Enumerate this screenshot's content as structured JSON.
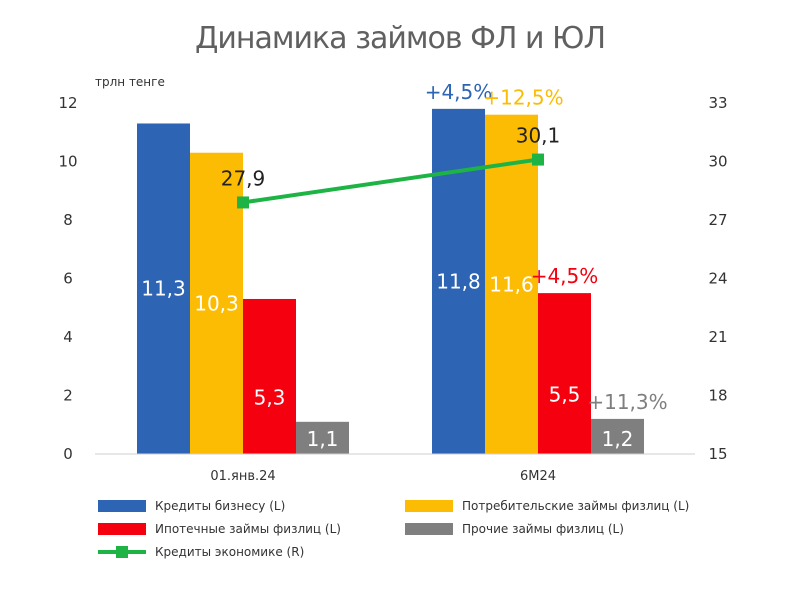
{
  "chart_data": {
    "type": "bar",
    "title": "Динамика займов ФЛ и ЮЛ",
    "ylabel": "трлн тенге",
    "categories": [
      "01.янв.24",
      "6М24"
    ],
    "ylim": [
      0,
      12
    ],
    "y_ticks": [
      0,
      2,
      4,
      6,
      8,
      10,
      12
    ],
    "y2lim": [
      15,
      33
    ],
    "y2_ticks": [
      15,
      18,
      21,
      24,
      27,
      30,
      33
    ],
    "series": [
      {
        "name": "Кредиты бизнесу (L)",
        "axis": "left",
        "kind": "bar",
        "color": "#2E64B4",
        "values": [
          11.3,
          11.8
        ],
        "labels": [
          "11,3",
          "11,8"
        ]
      },
      {
        "name": "Потребительские займы физлиц (L)",
        "axis": "left",
        "kind": "bar",
        "color": "#FCBC04",
        "values": [
          10.3,
          11.6
        ],
        "labels": [
          "10,3",
          "11,6"
        ]
      },
      {
        "name": "Ипотечные займы физлиц (L)",
        "axis": "left",
        "kind": "bar",
        "color": "#F4000E",
        "values": [
          5.3,
          5.5
        ],
        "labels": [
          "5,3",
          "5,5"
        ]
      },
      {
        "name": "Прочие займы физлиц (L)",
        "axis": "left",
        "kind": "bar",
        "color": "#7F7F7F",
        "values": [
          1.1,
          1.2
        ],
        "labels": [
          "1,1",
          "1,2"
        ]
      },
      {
        "name": "Кредиты экономике (R)",
        "axis": "right",
        "kind": "line",
        "color": "#1DB445",
        "values": [
          27.9,
          30.1
        ],
        "labels": [
          "27,9",
          "30,1"
        ]
      }
    ],
    "annotations": [
      {
        "text": "+4,5%",
        "series": 0,
        "category": 1,
        "color": "#2E64B4"
      },
      {
        "text": "+12,5%",
        "series": 1,
        "category": 1,
        "color": "#FCBC04"
      },
      {
        "text": "+4,5%",
        "series": 2,
        "category": 1,
        "color": "#F4000E"
      },
      {
        "text": "+11,3%",
        "series": 3,
        "category": 1,
        "color": "#7F7F7F"
      }
    ]
  }
}
